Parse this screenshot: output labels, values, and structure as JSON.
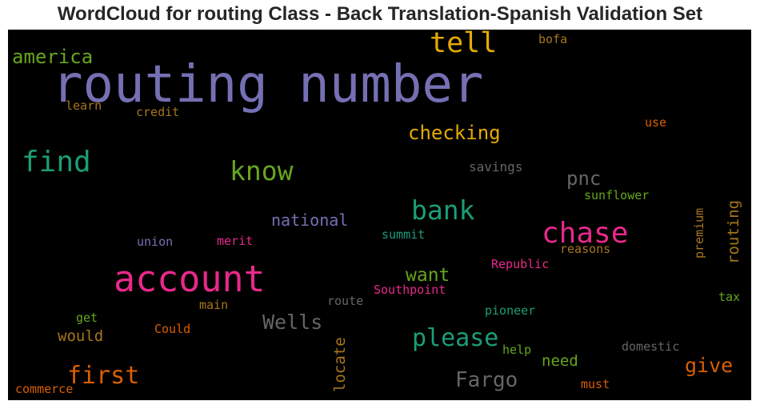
{
  "chart_data": {
    "type": "wordcloud",
    "title": "WordCloud for routing Class - Back Translation-Spanish Validation Set",
    "background": "#000000",
    "words": [
      {
        "text": "routing number",
        "color": "#7570b3",
        "orientation": "horizontal"
      },
      {
        "text": "account",
        "color": "#e7298a",
        "orientation": "horizontal"
      },
      {
        "text": "find",
        "color": "#1b9e77",
        "orientation": "horizontal"
      },
      {
        "text": "tell",
        "color": "#e6ab02",
        "orientation": "horizontal"
      },
      {
        "text": "chase",
        "color": "#e7298a",
        "orientation": "horizontal"
      },
      {
        "text": "know",
        "color": "#66a61e",
        "orientation": "horizontal"
      },
      {
        "text": "bank",
        "color": "#1b9e77",
        "orientation": "horizontal"
      },
      {
        "text": "first",
        "color": "#d95f02",
        "orientation": "horizontal"
      },
      {
        "text": "please",
        "color": "#1b9e77",
        "orientation": "horizontal"
      },
      {
        "text": "america",
        "color": "#66a61e",
        "orientation": "horizontal"
      },
      {
        "text": "checking",
        "color": "#e6ab02",
        "orientation": "horizontal"
      },
      {
        "text": "Fargo",
        "color": "#666666",
        "orientation": "horizontal"
      },
      {
        "text": "Wells",
        "color": "#666666",
        "orientation": "horizontal"
      },
      {
        "text": "give",
        "color": "#d95f02",
        "orientation": "horizontal"
      },
      {
        "text": "pnc",
        "color": "#666666",
        "orientation": "horizontal"
      },
      {
        "text": "want",
        "color": "#66a61e",
        "orientation": "horizontal"
      },
      {
        "text": "national",
        "color": "#7570b3",
        "orientation": "horizontal"
      },
      {
        "text": "need",
        "color": "#66a61e",
        "orientation": "horizontal"
      },
      {
        "text": "would",
        "color": "#a6761d",
        "orientation": "horizontal"
      },
      {
        "text": "locate",
        "color": "#a6761d",
        "orientation": "vertical"
      },
      {
        "text": "routing",
        "color": "#a6761d",
        "orientation": "vertical"
      },
      {
        "text": "savings",
        "color": "#666666",
        "orientation": "horizontal"
      },
      {
        "text": "sunflower",
        "color": "#66a61e",
        "orientation": "horizontal"
      },
      {
        "text": "summit",
        "color": "#1b9e77",
        "orientation": "horizontal"
      },
      {
        "text": "union",
        "color": "#7570b3",
        "orientation": "horizontal"
      },
      {
        "text": "merit",
        "color": "#e7298a",
        "orientation": "horizontal"
      },
      {
        "text": "Republic",
        "color": "#e7298a",
        "orientation": "horizontal"
      },
      {
        "text": "reasons",
        "color": "#a6761d",
        "orientation": "horizontal"
      },
      {
        "text": "premium",
        "color": "#a6761d",
        "orientation": "vertical"
      },
      {
        "text": "Southpoint",
        "color": "#e7298a",
        "orientation": "horizontal"
      },
      {
        "text": "main",
        "color": "#a6761d",
        "orientation": "horizontal"
      },
      {
        "text": "route",
        "color": "#666666",
        "orientation": "horizontal"
      },
      {
        "text": "pioneer",
        "color": "#1b9e77",
        "orientation": "horizontal"
      },
      {
        "text": "tax",
        "color": "#66a61e",
        "orientation": "horizontal"
      },
      {
        "text": "get",
        "color": "#66a61e",
        "orientation": "horizontal"
      },
      {
        "text": "Could",
        "color": "#d95f02",
        "orientation": "horizontal"
      },
      {
        "text": "help",
        "color": "#66a61e",
        "orientation": "horizontal"
      },
      {
        "text": "domestic",
        "color": "#666666",
        "orientation": "horizontal"
      },
      {
        "text": "commerce",
        "color": "#d95f02",
        "orientation": "horizontal"
      },
      {
        "text": "must",
        "color": "#d95f02",
        "orientation": "horizontal"
      },
      {
        "text": "learn",
        "color": "#a6761d",
        "orientation": "horizontal"
      },
      {
        "text": "credit",
        "color": "#a6761d",
        "orientation": "horizontal"
      },
      {
        "text": "bofa",
        "color": "#a6761d",
        "orientation": "horizontal"
      },
      {
        "text": "use",
        "color": "#d95f02",
        "orientation": "horizontal"
      }
    ]
  }
}
